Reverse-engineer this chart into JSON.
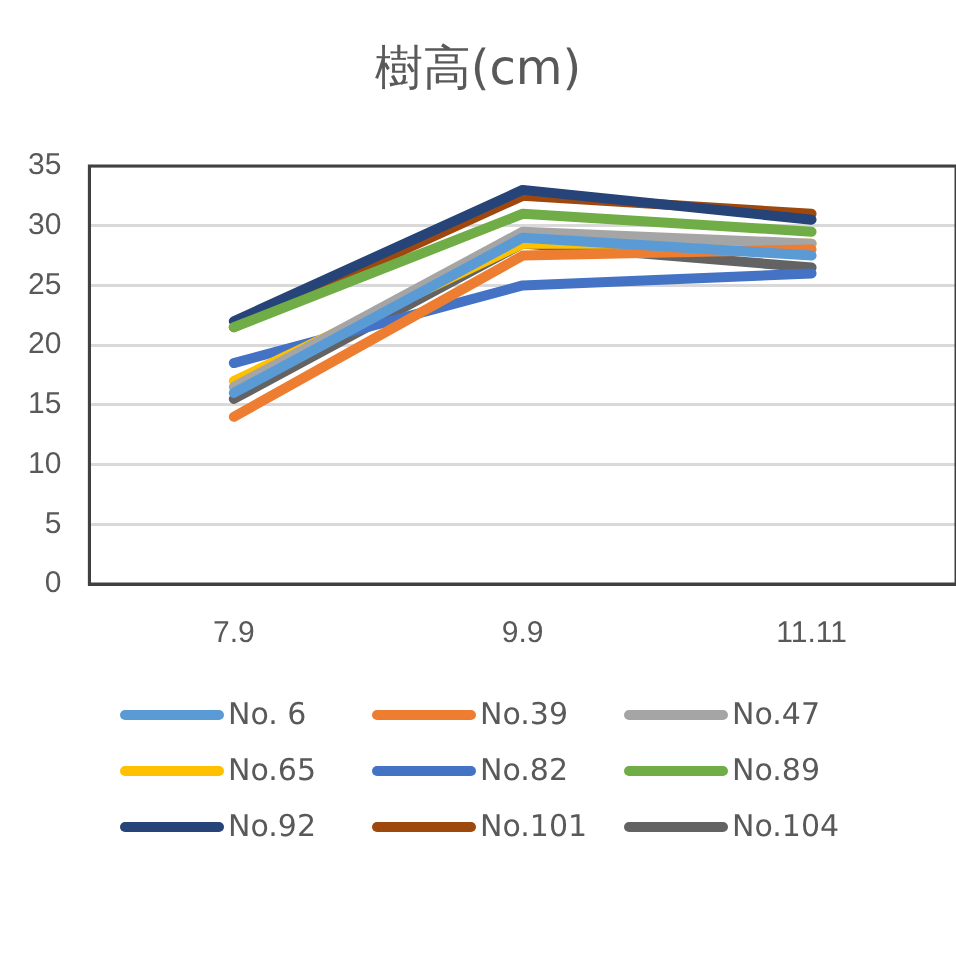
{
  "chart_data": {
    "type": "line",
    "title": "樹高(cm)",
    "categories": [
      "7.9",
      "9.9",
      "11.11"
    ],
    "series": [
      {
        "name": "No. 6",
        "color": "#5b9bd5",
        "values": [
          16,
          29,
          27.5
        ]
      },
      {
        "name": "No.39",
        "color": "#ed7d31",
        "values": [
          14,
          27.5,
          28
        ]
      },
      {
        "name": "No.47",
        "color": "#a5a5a5",
        "values": [
          16.5,
          29.5,
          28.5
        ]
      },
      {
        "name": "No.65",
        "color": "#ffc000",
        "values": [
          17,
          28.5,
          28.5
        ]
      },
      {
        "name": "No.82",
        "color": "#4472c4",
        "values": [
          18.5,
          25,
          26
        ]
      },
      {
        "name": "No.89",
        "color": "#70ad47",
        "values": [
          21.5,
          31,
          29.5
        ]
      },
      {
        "name": "No.92",
        "color": "#264478",
        "values": [
          22,
          33,
          30.5
        ]
      },
      {
        "name": "No.101",
        "color": "#9e480e",
        "values": [
          21.5,
          32.5,
          31
        ]
      },
      {
        "name": "No.104",
        "color": "#636363",
        "values": [
          15.5,
          28.5,
          26.5
        ]
      }
    ],
    "ylim": [
      0,
      35
    ],
    "yticks": [
      0,
      5,
      10,
      15,
      20,
      25,
      30,
      35
    ],
    "grid": "y",
    "legend": "bottom",
    "marker": "none",
    "line_style": "solid"
  }
}
